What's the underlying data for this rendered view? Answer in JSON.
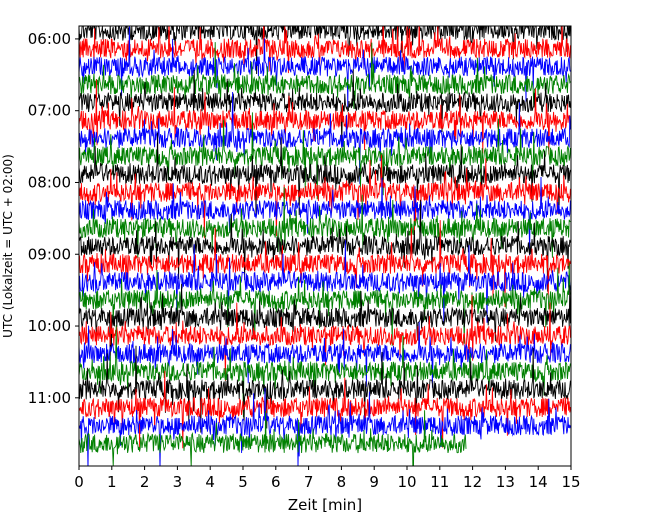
{
  "chart_data": {
    "type": "line",
    "title": "",
    "subtitle": "",
    "xlabel": "Zeit  [min]",
    "ylabel": "UTC (Lokalzeit = UTC + 02:00)",
    "xlim": [
      0,
      15
    ],
    "x_ticks": [
      "0",
      "1",
      "2",
      "3",
      "4",
      "5",
      "6",
      "7",
      "8",
      "9",
      "10",
      "11",
      "12",
      "13",
      "14",
      "15"
    ],
    "y_ticks": [
      "06:00",
      "07:00",
      "08:00",
      "09:00",
      "10:00",
      "11:00"
    ],
    "ylim_hours": [
      5.82,
      11.95
    ],
    "grid": false,
    "legend": "none",
    "row_interval_minutes": 15,
    "traces_start_utc": "05:53",
    "trace_count": 24,
    "last_trace_end_min": 11.8,
    "trace_colors": [
      "#000000",
      "#ff0000",
      "#0000ff",
      "#008000"
    ],
    "series": [
      {
        "color": "#000000",
        "rows_utc": [
          "05:53",
          "06:53",
          "07:53",
          "08:53",
          "09:53",
          "10:53"
        ]
      },
      {
        "color": "#ff0000",
        "rows_utc": [
          "06:08",
          "07:08",
          "08:08",
          "09:08",
          "10:08",
          "11:08"
        ]
      },
      {
        "color": "#0000ff",
        "rows_utc": [
          "06:23",
          "07:23",
          "08:23",
          "09:23",
          "10:23",
          "11:23"
        ]
      },
      {
        "color": "#008000",
        "rows_utc": [
          "06:38",
          "07:38",
          "08:38",
          "09:38",
          "10:38",
          "11:38"
        ]
      }
    ]
  }
}
